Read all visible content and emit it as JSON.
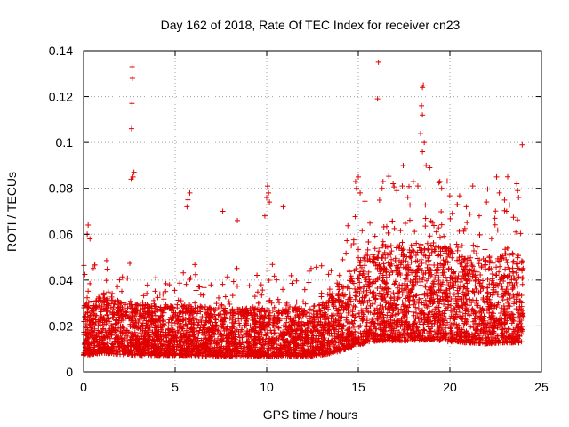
{
  "chart_data": {
    "type": "scatter",
    "title": "Day 162 of 2018, Rate Of TEC Index for receiver cn23",
    "xlabel": "GPS time / hours",
    "ylabel": "ROTI / TECUs",
    "xlim": [
      0,
      25
    ],
    "ylim": [
      0,
      0.14
    ],
    "xticks": [
      0,
      5,
      10,
      15,
      20,
      25
    ],
    "xtick_labels": [
      "0",
      "5",
      "10",
      "15",
      "20",
      "25"
    ],
    "yticks": [
      0,
      0.02,
      0.04,
      0.06,
      0.08,
      0.1,
      0.12,
      0.14
    ],
    "ytick_labels": [
      "0",
      "0.02",
      "0.04",
      "0.06",
      "0.08",
      "0.1",
      "0.12",
      "0.14"
    ],
    "grid": true,
    "marker": "plus",
    "series_color": "#e00000",
    "series": [
      {
        "name": "ROTI",
        "trend": [
          [
            0.0,
            0.016
          ],
          [
            1.0,
            0.018
          ],
          [
            2.0,
            0.017
          ],
          [
            3.0,
            0.016
          ],
          [
            4.0,
            0.016
          ],
          [
            5.0,
            0.016
          ],
          [
            6.0,
            0.016
          ],
          [
            7.0,
            0.015
          ],
          [
            8.0,
            0.015
          ],
          [
            9.0,
            0.015
          ],
          [
            10.0,
            0.015
          ],
          [
            11.0,
            0.015
          ],
          [
            12.0,
            0.015
          ],
          [
            13.0,
            0.016
          ],
          [
            14.0,
            0.02
          ],
          [
            15.0,
            0.026
          ],
          [
            16.0,
            0.03
          ],
          [
            17.0,
            0.03
          ],
          [
            18.0,
            0.03
          ],
          [
            19.0,
            0.031
          ],
          [
            20.0,
            0.029
          ],
          [
            21.0,
            0.028
          ],
          [
            22.0,
            0.027
          ],
          [
            23.0,
            0.028
          ],
          [
            24.0,
            0.028
          ]
        ],
        "points": [
          [
            2.65,
            0.133
          ],
          [
            2.66,
            0.128
          ],
          [
            2.64,
            0.117
          ],
          [
            2.62,
            0.106
          ],
          [
            2.75,
            0.087
          ],
          [
            2.7,
            0.085
          ],
          [
            2.6,
            0.084
          ],
          [
            16.1,
            0.135
          ],
          [
            16.05,
            0.119
          ],
          [
            18.55,
            0.125
          ],
          [
            18.5,
            0.124
          ],
          [
            18.45,
            0.116
          ],
          [
            18.5,
            0.112
          ],
          [
            18.4,
            0.104
          ],
          [
            18.6,
            0.1
          ],
          [
            18.5,
            0.096
          ],
          [
            18.7,
            0.09
          ],
          [
            18.9,
            0.089
          ],
          [
            23.95,
            0.099
          ],
          [
            0.25,
            0.064
          ],
          [
            0.2,
            0.06
          ],
          [
            0.35,
            0.058
          ],
          [
            5.7,
            0.075
          ],
          [
            5.8,
            0.078
          ],
          [
            5.65,
            0.072
          ],
          [
            10.05,
            0.081
          ],
          [
            10.1,
            0.078
          ],
          [
            10.0,
            0.076
          ],
          [
            10.15,
            0.074
          ],
          [
            10.9,
            0.072
          ],
          [
            9.9,
            0.068
          ],
          [
            7.6,
            0.07
          ],
          [
            8.4,
            0.066
          ],
          [
            15.0,
            0.085
          ],
          [
            14.85,
            0.083
          ],
          [
            14.9,
            0.08
          ],
          [
            15.1,
            0.078
          ],
          [
            16.35,
            0.083
          ],
          [
            16.3,
            0.08
          ],
          [
            16.9,
            0.082
          ],
          [
            17.1,
            0.079
          ],
          [
            17.4,
            0.081
          ],
          [
            18.0,
            0.083
          ],
          [
            18.25,
            0.081
          ],
          [
            19.45,
            0.083
          ],
          [
            19.55,
            0.08
          ],
          [
            21.25,
            0.081
          ],
          [
            22.55,
            0.085
          ],
          [
            22.7,
            0.078
          ],
          [
            23.65,
            0.082
          ],
          [
            23.7,
            0.079
          ],
          [
            23.75,
            0.076
          ],
          [
            20.9,
            0.072
          ],
          [
            22.0,
            0.074
          ],
          [
            23.1,
            0.07
          ],
          [
            21.6,
            0.068
          ]
        ]
      }
    ]
  }
}
